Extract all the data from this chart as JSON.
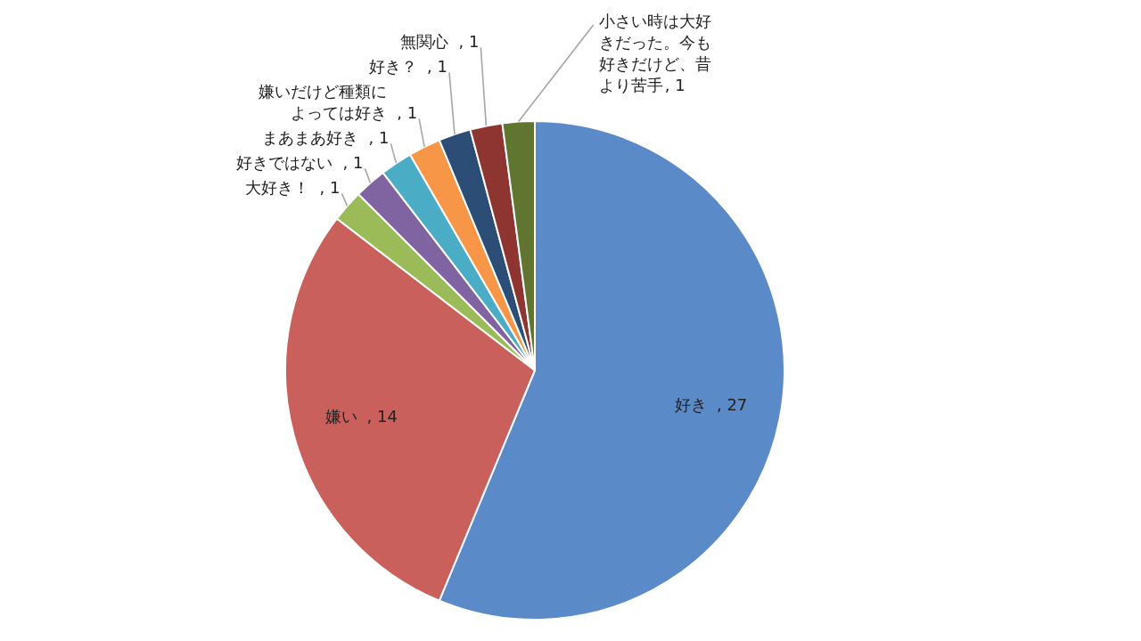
{
  "chart_data": {
    "type": "pie",
    "categories": [
      "好き",
      "嫌い",
      "大好き！",
      "好きではない",
      "まあまあ好き",
      "嫌いだけど種類によっては好き",
      "好き？",
      "無関心",
      "小さい時は大好きだった。今も好きだけど、昔より苦手"
    ],
    "values": [
      27,
      14,
      1,
      1,
      1,
      1,
      1,
      1,
      1
    ],
    "colors": [
      "#5b8ac8",
      "#c9605c",
      "#9bbb59",
      "#8064a2",
      "#4bacc6",
      "#f79646",
      "#2c4d75",
      "#8e3532",
      "#5f7530"
    ],
    "value_labels": [
      ", 27",
      ", 14",
      ", 1",
      ", 1",
      ", 1",
      ", 1",
      ", 1",
      ", 1",
      ", 1"
    ]
  }
}
